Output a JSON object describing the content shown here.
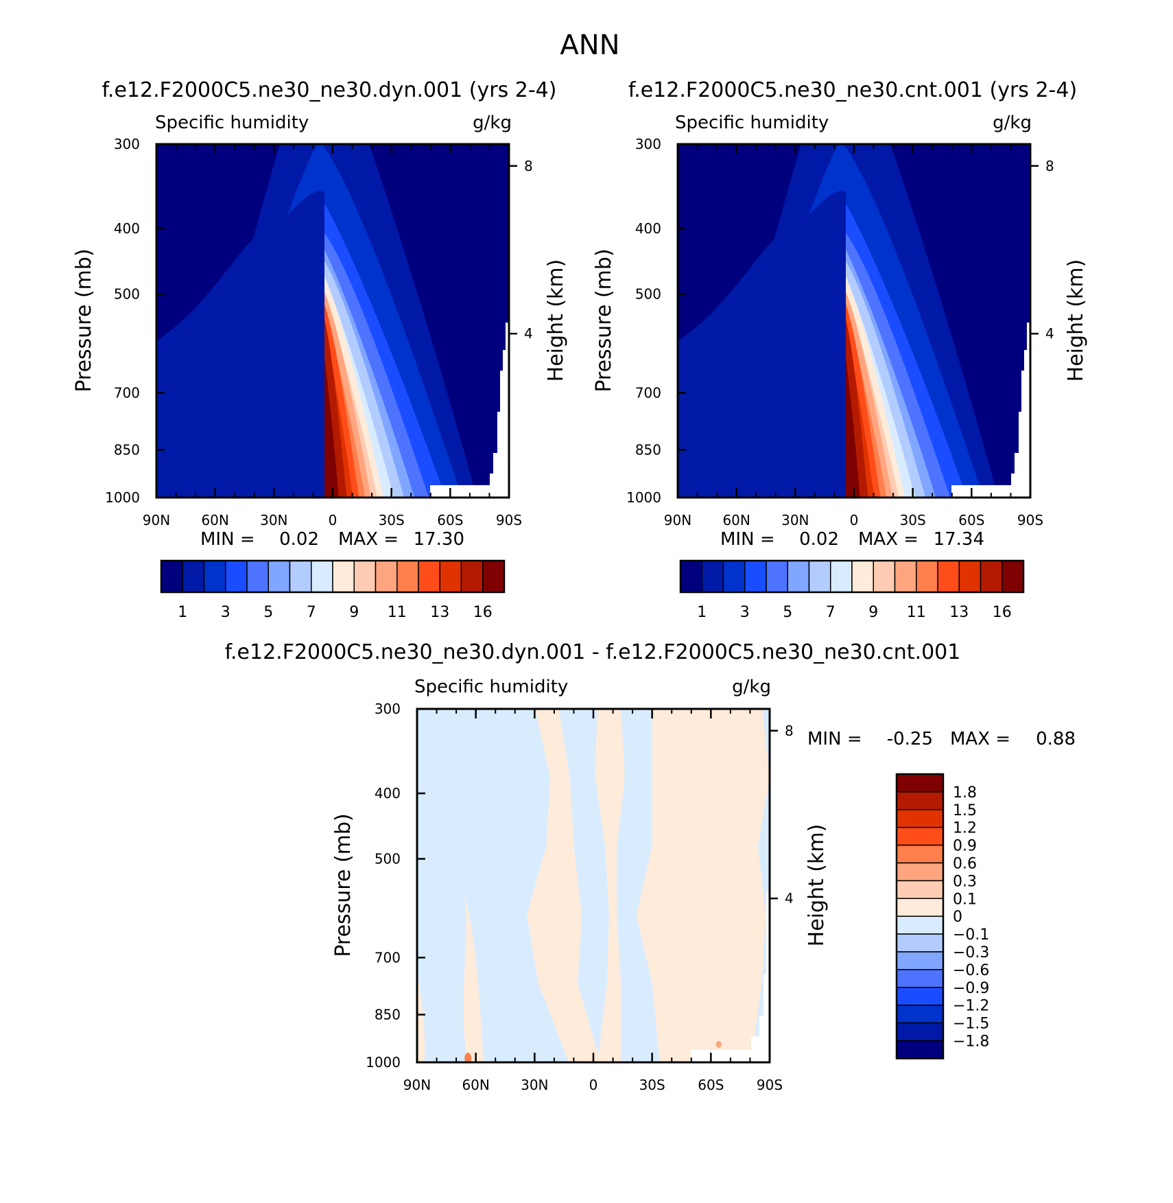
{
  "figure_title": "ANN",
  "chart_data": [
    {
      "type": "heatmap",
      "title": "f.e12.F2000C5.ne30_ne30.dyn.001 (yrs 2-4)",
      "left_label": "Specific humidity",
      "right_label": "g/kg",
      "ylabel": "Pressure (mb)",
      "ylabel_right": "Height (km)",
      "x_ticks": [
        "90N",
        "60N",
        "30N",
        "0",
        "30S",
        "60S",
        "90S"
      ],
      "y_ticks": [
        "300",
        "400",
        "500",
        "700",
        "850",
        "1000"
      ],
      "y_ticks_right": [
        "8",
        "4"
      ],
      "xlim": [
        90,
        -90
      ],
      "ylim": [
        1000,
        300
      ],
      "y_scale": "log",
      "stats": {
        "min_label": "MIN =",
        "min_value": "0.02",
        "max_label": "MAX =",
        "max_value": "17.30"
      },
      "min": 0.02,
      "max": 17.3,
      "legend_placement": "bottom",
      "colorbar_labels": [
        "1",
        "3",
        "5",
        "7",
        "9",
        "11",
        "13",
        "16"
      ],
      "colors": [
        "#00007f",
        "#0019a6",
        "#0033cc",
        "#1a4dff",
        "#4d73ff",
        "#80a6ff",
        "#b3ccff",
        "#d9ecff",
        "#ffebd9",
        "#ffccb3",
        "#ffa680",
        "#ff7f4d",
        "#ff4d1a",
        "#e03300",
        "#b31a00",
        "#7f0000"
      ]
    },
    {
      "type": "heatmap",
      "title": "f.e12.F2000C5.ne30_ne30.cnt.001 (yrs 2-4)",
      "left_label": "Specific humidity",
      "right_label": "g/kg",
      "ylabel": "Pressure (mb)",
      "ylabel_right": "Height (km)",
      "x_ticks": [
        "90N",
        "60N",
        "30N",
        "0",
        "30S",
        "60S",
        "90S"
      ],
      "y_ticks": [
        "300",
        "400",
        "500",
        "700",
        "850",
        "1000"
      ],
      "y_ticks_right": [
        "8",
        "4"
      ],
      "xlim": [
        90,
        -90
      ],
      "ylim": [
        1000,
        300
      ],
      "y_scale": "log",
      "stats": {
        "min_label": "MIN =",
        "min_value": "0.02",
        "max_label": "MAX =",
        "max_value": "17.34"
      },
      "min": 0.02,
      "max": 17.34,
      "legend_placement": "bottom",
      "colorbar_labels": [
        "1",
        "3",
        "5",
        "7",
        "9",
        "11",
        "13",
        "16"
      ],
      "colors": [
        "#00007f",
        "#0019a6",
        "#0033cc",
        "#1a4dff",
        "#4d73ff",
        "#80a6ff",
        "#b3ccff",
        "#d9ecff",
        "#ffebd9",
        "#ffccb3",
        "#ffa680",
        "#ff7f4d",
        "#ff4d1a",
        "#e03300",
        "#b31a00",
        "#7f0000"
      ]
    },
    {
      "type": "heatmap",
      "title": "f.e12.F2000C5.ne30_ne30.dyn.001 - f.e12.F2000C5.ne30_ne30.cnt.001",
      "left_label": "Specific humidity",
      "right_label": "g/kg",
      "ylabel": "Pressure (mb)",
      "ylabel_right": "Height (km)",
      "x_ticks": [
        "90N",
        "60N",
        "30N",
        "0",
        "30S",
        "60S",
        "90S"
      ],
      "y_ticks": [
        "300",
        "400",
        "500",
        "700",
        "850",
        "1000"
      ],
      "y_ticks_right": [
        "8",
        "4"
      ],
      "xlim": [
        90,
        -90
      ],
      "ylim": [
        1000,
        300
      ],
      "y_scale": "log",
      "stats": {
        "min_label": "MIN =",
        "min_value": "-0.25",
        "max_label": "MAX =",
        "max_value": "0.88"
      },
      "min": -0.25,
      "max": 0.88,
      "legend_placement": "right",
      "colorbar_labels": [
        "1.8",
        "1.5",
        "1.2",
        "0.9",
        "0.6",
        "0.3",
        "0.1",
        "0",
        "-0.1",
        "-0.3",
        "-0.6",
        "-0.9",
        "-1.2",
        "-1.5",
        "-1.8"
      ],
      "colors": [
        "#7f0000",
        "#b31a00",
        "#e03300",
        "#ff4d1a",
        "#ff7f4d",
        "#ffa680",
        "#ffccb3",
        "#ffebd9",
        "#d9ecff",
        "#b3ccff",
        "#80a6ff",
        "#4d73ff",
        "#1a4dff",
        "#0033cc",
        "#0019a6",
        "#00007f"
      ]
    }
  ]
}
